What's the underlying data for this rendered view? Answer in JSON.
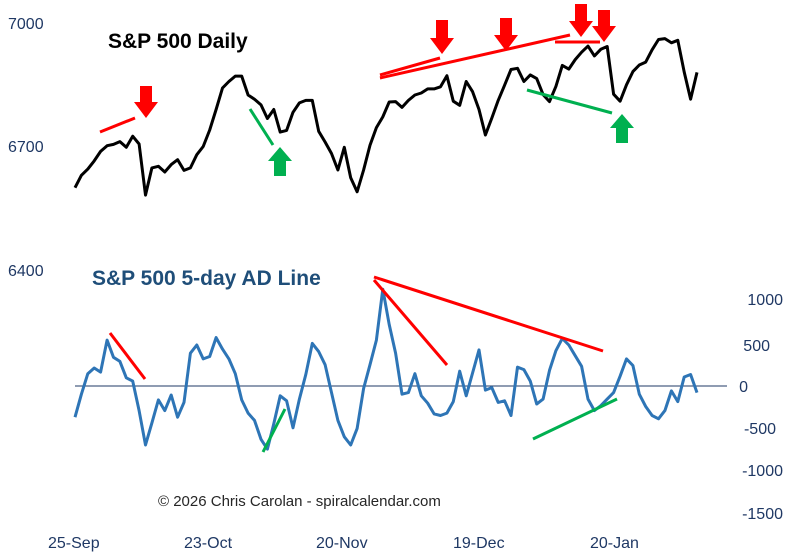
{
  "chart_data": [
    {
      "type": "line",
      "title": "S&P 500 Daily",
      "y_ticks": [
        6400,
        6700,
        7000
      ],
      "ylim": [
        6400,
        7000
      ],
      "x_tick_labels": [
        "25-Sep",
        "23-Oct",
        "20-Nov",
        "19-Dec",
        "20-Jan"
      ],
      "series": [
        {
          "color": "#000000",
          "values": [
            6600,
            6630,
            6645,
            6665,
            6688,
            6702,
            6705,
            6712,
            6698,
            6725,
            6706,
            6582,
            6648,
            6652,
            6638,
            6656,
            6668,
            6642,
            6648,
            6680,
            6700,
            6740,
            6790,
            6842,
            6858,
            6871,
            6871,
            6825,
            6815,
            6801,
            6768,
            6790,
            6735,
            6739,
            6783,
            6806,
            6812,
            6812,
            6737,
            6711,
            6683,
            6643,
            6698,
            6624,
            6590,
            6643,
            6703,
            6746,
            6772,
            6808,
            6809,
            6795,
            6812,
            6825,
            6830,
            6840,
            6840,
            6845,
            6872,
            6810,
            6800,
            6858,
            6833,
            6790,
            6728,
            6769,
            6812,
            6849,
            6887,
            6890,
            6858,
            6874,
            6865,
            6826,
            6809,
            6846,
            6897,
            6888,
            6911,
            6929,
            6944,
            6920,
            6936,
            6943,
            6827,
            6810,
            6850,
            6882,
            6898,
            6905,
            6935,
            6960,
            6962,
            6952,
            6958,
            6881,
            6815,
            6880
          ]
        }
      ]
    },
    {
      "type": "line",
      "title": "S&P 500 5-day AD Line",
      "y_ticks": [
        1000,
        500,
        0,
        -500,
        -1000,
        -1500
      ],
      "ylim": [
        -1500,
        1000
      ],
      "series": [
        {
          "color": "#2e75b6",
          "values": [
            -380,
            -100,
            150,
            220,
            170,
            560,
            350,
            300,
            100,
            60,
            -300,
            -720,
            -450,
            -170,
            -300,
            -110,
            -380,
            -200,
            400,
            500,
            330,
            360,
            590,
            450,
            330,
            150,
            -170,
            -330,
            -420,
            -650,
            -770,
            -460,
            -120,
            -180,
            -510,
            -160,
            140,
            520,
            420,
            260,
            -80,
            -420,
            -620,
            -720,
            -520,
            -30,
            260,
            560,
            1180,
            750,
            400,
            -100,
            -80,
            150,
            -120,
            -210,
            -340,
            -360,
            -330,
            -190,
            180,
            -120,
            160,
            440,
            -50,
            -20,
            -200,
            -180,
            -360,
            230,
            200,
            60,
            -220,
            -160,
            190,
            430,
            580,
            500,
            370,
            240,
            -160,
            -300,
            -240,
            -160,
            -80,
            120,
            330,
            250,
            -100,
            -250,
            -360,
            -400,
            -300,
            -60,
            -190,
            110,
            140,
            -80
          ]
        }
      ]
    }
  ],
  "copyright": "© 2026 Chris Carolan - spiralcalendar.com"
}
